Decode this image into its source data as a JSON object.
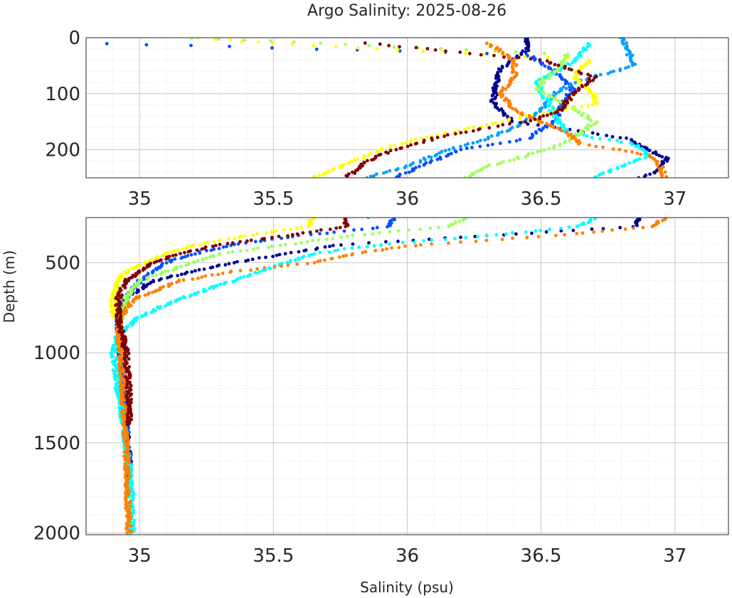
{
  "chart_data": {
    "type": "scatter",
    "title": "Argo Salinity: 2025-08-26",
    "xlabel": "Salinity (psu)",
    "ylabel": "Depth (m)",
    "grid": true,
    "minor_grid": true,
    "panels": [
      {
        "name": "upper",
        "xlim": [
          34.8,
          37.2
        ],
        "ylim": [
          250,
          0
        ],
        "xticks": [
          35,
          35.5,
          36,
          36.5,
          37
        ],
        "xtick_labels": [
          "35",
          "35.5",
          "36",
          "36.5",
          "37"
        ],
        "yticks": [
          0,
          100,
          200
        ],
        "ytick_labels": [
          "0",
          "100",
          "200"
        ]
      },
      {
        "name": "lower",
        "xlim": [
          34.8,
          37.2
        ],
        "ylim": [
          2010,
          250
        ],
        "xticks": [
          35,
          35.5,
          36,
          36.5,
          37
        ],
        "xtick_labels": [
          "35",
          "35.5",
          "36",
          "36.5",
          "37"
        ],
        "yticks": [
          500,
          1000,
          1500,
          2000
        ],
        "ytick_labels": [
          "500",
          "1000",
          "1500",
          "2000"
        ]
      }
    ],
    "series": [
      {
        "color": "#00008f",
        "depth": [
          0,
          20,
          60,
          90,
          100,
          115,
          130,
          150,
          160,
          180,
          200,
          215,
          230,
          240,
          250,
          300,
          350,
          400,
          500,
          600,
          700,
          800,
          1000,
          1200,
          1400,
          1600,
          1700
        ],
        "salinity": [
          36.45,
          36.45,
          36.34,
          36.33,
          36.33,
          36.32,
          36.35,
          36.4,
          36.55,
          36.82,
          36.9,
          36.97,
          36.95,
          36.93,
          36.87,
          36.85,
          36.3,
          35.75,
          35.35,
          35.05,
          34.95,
          34.92,
          34.93,
          34.94,
          34.95,
          34.96,
          34.96
        ]
      },
      {
        "color": "#0050ff",
        "depth": [
          10,
          30,
          60,
          90,
          120,
          150,
          180,
          200,
          230,
          250,
          300,
          350,
          400,
          450,
          500,
          600,
          700,
          800,
          1000,
          1200,
          1400,
          1600,
          1700,
          1790
        ],
        "salinity": [
          34.87,
          36.45,
          36.55,
          36.62,
          36.58,
          36.55,
          36.45,
          36.2,
          36.05,
          35.95,
          35.93,
          35.6,
          35.35,
          35.2,
          35.1,
          35.0,
          34.95,
          34.92,
          34.93,
          34.94,
          34.95,
          34.96,
          34.96,
          34.96
        ]
      },
      {
        "color": "#00a0ff",
        "depth": [
          0,
          20,
          50,
          80,
          100,
          130,
          160,
          180,
          200,
          230,
          250
        ],
        "salinity": [
          36.8,
          36.82,
          36.85,
          36.62,
          36.55,
          36.5,
          36.4,
          36.3,
          36.15,
          36.0,
          35.85
        ]
      },
      {
        "color": "#00ffff",
        "depth": [
          10,
          40,
          80,
          110,
          140,
          170,
          190,
          210,
          230,
          250,
          300,
          350,
          400,
          450,
          500,
          600,
          700,
          800,
          900,
          1000,
          1200,
          1400,
          1600,
          1800,
          2000
        ],
        "salinity": [
          36.68,
          36.63,
          36.48,
          36.52,
          36.55,
          36.6,
          36.85,
          36.9,
          36.8,
          36.7,
          36.64,
          36.3,
          35.9,
          35.65,
          35.55,
          35.35,
          35.15,
          35.0,
          34.92,
          34.9,
          34.92,
          34.94,
          34.96,
          34.97,
          34.97
        ]
      },
      {
        "color": "#a0ff60",
        "depth": [
          0,
          30,
          60,
          90,
          120,
          150,
          170,
          190,
          210,
          230,
          250,
          300,
          350,
          400,
          450,
          500,
          550,
          600,
          700,
          800,
          1000
        ],
        "salinity": [
          35.2,
          36.6,
          36.55,
          36.48,
          36.6,
          36.7,
          36.65,
          36.58,
          36.45,
          36.3,
          36.22,
          36.15,
          35.8,
          35.55,
          35.3,
          35.2,
          35.1,
          35.0,
          34.95,
          34.93,
          34.93
        ]
      },
      {
        "color": "#ffff00",
        "depth": [
          0,
          10,
          40,
          70,
          100,
          120,
          140,
          160,
          180,
          200,
          230,
          250,
          300,
          350,
          400,
          450,
          500,
          550,
          600,
          700,
          800
        ],
        "salinity": [
          35.22,
          35.5,
          36.68,
          36.62,
          36.7,
          36.7,
          36.45,
          36.25,
          36.05,
          35.9,
          35.75,
          35.65,
          35.63,
          35.4,
          35.22,
          35.1,
          35.02,
          34.95,
          34.92,
          34.9,
          34.9
        ]
      },
      {
        "color": "#ff8000",
        "depth": [
          10,
          40,
          70,
          100,
          130,
          150,
          170,
          190,
          200,
          210,
          230,
          250,
          300,
          350,
          400,
          450,
          500,
          550,
          600,
          700,
          800,
          900,
          1000,
          1500,
          2000
        ],
        "salinity": [
          36.3,
          36.4,
          36.4,
          36.35,
          36.4,
          36.5,
          36.6,
          36.65,
          36.8,
          36.9,
          36.95,
          36.96,
          36.92,
          36.55,
          36.05,
          35.8,
          35.65,
          35.35,
          35.15,
          34.98,
          34.93,
          34.92,
          34.93,
          34.95,
          34.96
        ]
      },
      {
        "color": "#800000",
        "depth": [
          10,
          40,
          70,
          100,
          130,
          150,
          160,
          180,
          200,
          220,
          240,
          250,
          300,
          350,
          400,
          450,
          500,
          550,
          600,
          700,
          800,
          1000,
          1200,
          1400
        ],
        "salinity": [
          35.85,
          36.5,
          36.7,
          36.62,
          36.57,
          36.45,
          36.3,
          36.1,
          35.95,
          35.85,
          35.8,
          35.77,
          35.77,
          35.55,
          35.3,
          35.15,
          35.05,
          35.0,
          34.95,
          34.92,
          34.92,
          34.95,
          34.96,
          34.96
        ]
      }
    ]
  }
}
